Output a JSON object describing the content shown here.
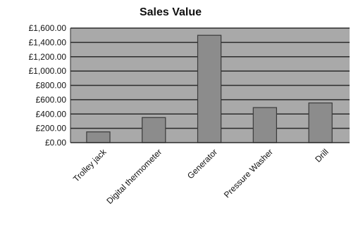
{
  "chart_data": {
    "type": "bar",
    "title": "Sales Value",
    "xlabel": "",
    "ylabel": "",
    "categories": [
      "Trolley jack",
      "Digital thermometer",
      "Generator",
      "Pressure Washer",
      "Drill"
    ],
    "values": [
      150,
      350,
      1500,
      490,
      555
    ],
    "ylim": [
      0,
      1600
    ],
    "ytick_step": 200,
    "ytick_labels": [
      "£0.00",
      "£200.00",
      "£400.00",
      "£600.00",
      "£800.00",
      "£1,000.00",
      "£1,200.00",
      "£1,400.00",
      "£1,600.00"
    ],
    "grid": true,
    "legend": "none",
    "colors": {
      "plot_background": "#a9a9a9",
      "bar_fill": "#8c8c8c",
      "bar_stroke": "#3a3a3a",
      "gridline": "#2b2b2b",
      "text": "#111111"
    }
  }
}
